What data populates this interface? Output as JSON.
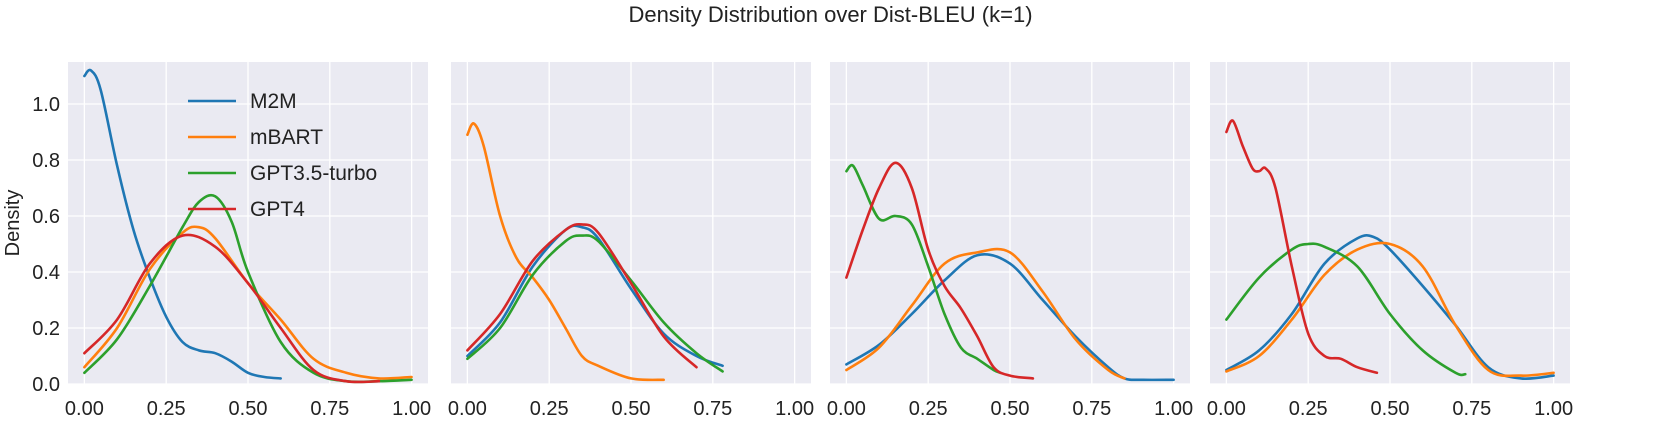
{
  "title": "Density Distribution over Dist-BLEU (k=1)",
  "ylabel": "Density",
  "colors": {
    "background": "#eaeaf2",
    "grid": "#ffffff",
    "M2M": "#1f77b4",
    "mBART": "#ff7f0e",
    "GPT3.5-turbo": "#2ca02c",
    "GPT4": "#d62728"
  },
  "chart_data": {
    "type": "line",
    "xlim": [
      -0.05,
      1.05
    ],
    "ylim": [
      0,
      1.15
    ],
    "xticks": [
      0.0,
      0.25,
      0.5,
      0.75,
      1.0
    ],
    "xtick_labels": [
      "0.00",
      "0.25",
      "0.50",
      "0.75",
      "1.00"
    ],
    "yticks": [
      0.0,
      0.2,
      0.4,
      0.6,
      0.8,
      1.0
    ],
    "ytick_labels": [
      "0.0",
      "0.2",
      "0.4",
      "0.6",
      "0.8",
      "1.0"
    ],
    "legend": [
      "M2M",
      "mBART",
      "GPT3.5-turbo",
      "GPT4"
    ],
    "legend_position": "top-left of first panel",
    "panels": [
      {
        "series": [
          {
            "name": "M2M",
            "x": [
              0.0,
              0.02,
              0.05,
              0.1,
              0.15,
              0.2,
              0.25,
              0.3,
              0.35,
              0.4,
              0.45,
              0.5,
              0.55,
              0.6
            ],
            "y": [
              1.1,
              1.12,
              1.05,
              0.78,
              0.55,
              0.38,
              0.24,
              0.15,
              0.12,
              0.11,
              0.08,
              0.04,
              0.025,
              0.02
            ]
          },
          {
            "name": "mBART",
            "x": [
              0.0,
              0.1,
              0.2,
              0.3,
              0.35,
              0.4,
              0.5,
              0.6,
              0.7,
              0.8,
              0.9,
              1.0
            ],
            "y": [
              0.06,
              0.2,
              0.41,
              0.54,
              0.56,
              0.52,
              0.36,
              0.23,
              0.09,
              0.04,
              0.02,
              0.025
            ]
          },
          {
            "name": "GPT3.5-turbo",
            "x": [
              0.0,
              0.1,
              0.2,
              0.3,
              0.35,
              0.4,
              0.45,
              0.5,
              0.6,
              0.7,
              0.8,
              0.9,
              1.0
            ],
            "y": [
              0.04,
              0.16,
              0.35,
              0.56,
              0.65,
              0.67,
              0.58,
              0.4,
              0.15,
              0.04,
              0.01,
              0.01,
              0.015
            ]
          },
          {
            "name": "GPT4",
            "x": [
              0.0,
              0.1,
              0.2,
              0.3,
              0.4,
              0.5,
              0.6,
              0.7,
              0.8,
              0.9
            ],
            "y": [
              0.11,
              0.23,
              0.43,
              0.53,
              0.49,
              0.36,
              0.2,
              0.05,
              0.01,
              0.01
            ]
          }
        ]
      },
      {
        "series": [
          {
            "name": "M2M",
            "x": [
              0.0,
              0.1,
              0.2,
              0.3,
              0.35,
              0.4,
              0.5,
              0.6,
              0.7,
              0.78
            ],
            "y": [
              0.1,
              0.22,
              0.42,
              0.55,
              0.56,
              0.52,
              0.34,
              0.18,
              0.1,
              0.065
            ]
          },
          {
            "name": "mBART",
            "x": [
              0.0,
              0.02,
              0.05,
              0.1,
              0.15,
              0.2,
              0.25,
              0.3,
              0.35,
              0.4,
              0.5,
              0.6
            ],
            "y": [
              0.89,
              0.93,
              0.85,
              0.6,
              0.45,
              0.38,
              0.3,
              0.2,
              0.1,
              0.065,
              0.02,
              0.015
            ]
          },
          {
            "name": "GPT3.5-turbo",
            "x": [
              0.0,
              0.1,
              0.2,
              0.3,
              0.35,
              0.4,
              0.5,
              0.6,
              0.7,
              0.78
            ],
            "y": [
              0.09,
              0.2,
              0.39,
              0.51,
              0.53,
              0.51,
              0.37,
              0.22,
              0.11,
              0.045
            ]
          },
          {
            "name": "GPT4",
            "x": [
              0.0,
              0.1,
              0.2,
              0.3,
              0.35,
              0.4,
              0.5,
              0.6,
              0.7
            ],
            "y": [
              0.12,
              0.25,
              0.44,
              0.55,
              0.57,
              0.54,
              0.36,
              0.17,
              0.06
            ]
          }
        ]
      },
      {
        "series": [
          {
            "name": "M2M",
            "x": [
              0.0,
              0.1,
              0.2,
              0.3,
              0.4,
              0.5,
              0.6,
              0.7,
              0.8,
              0.85,
              0.9,
              1.0
            ],
            "y": [
              0.07,
              0.14,
              0.25,
              0.37,
              0.46,
              0.43,
              0.3,
              0.17,
              0.06,
              0.02,
              0.015,
              0.015
            ]
          },
          {
            "name": "mBART",
            "x": [
              0.0,
              0.1,
              0.2,
              0.3,
              0.4,
              0.5,
              0.6,
              0.7,
              0.8,
              0.85
            ],
            "y": [
              0.05,
              0.13,
              0.28,
              0.43,
              0.47,
              0.47,
              0.33,
              0.16,
              0.05,
              0.02
            ]
          },
          {
            "name": "GPT3.5-turbo",
            "x": [
              0.0,
              0.02,
              0.05,
              0.1,
              0.15,
              0.2,
              0.25,
              0.3,
              0.35,
              0.4,
              0.45,
              0.47
            ],
            "y": [
              0.76,
              0.78,
              0.71,
              0.59,
              0.6,
              0.57,
              0.42,
              0.25,
              0.13,
              0.09,
              0.05,
              0.04
            ]
          },
          {
            "name": "GPT4",
            "x": [
              0.0,
              0.05,
              0.1,
              0.15,
              0.2,
              0.25,
              0.3,
              0.35,
              0.4,
              0.45,
              0.5,
              0.57
            ],
            "y": [
              0.38,
              0.55,
              0.7,
              0.79,
              0.7,
              0.48,
              0.35,
              0.27,
              0.17,
              0.06,
              0.03,
              0.02
            ]
          }
        ]
      },
      {
        "series": [
          {
            "name": "M2M",
            "x": [
              0.0,
              0.1,
              0.2,
              0.3,
              0.4,
              0.45,
              0.5,
              0.6,
              0.7,
              0.8,
              0.9,
              1.0
            ],
            "y": [
              0.05,
              0.12,
              0.25,
              0.43,
              0.52,
              0.525,
              0.48,
              0.35,
              0.21,
              0.06,
              0.02,
              0.03
            ]
          },
          {
            "name": "mBART",
            "x": [
              0.0,
              0.1,
              0.2,
              0.3,
              0.4,
              0.5,
              0.6,
              0.7,
              0.8,
              0.9,
              1.0
            ],
            "y": [
              0.045,
              0.1,
              0.23,
              0.39,
              0.48,
              0.5,
              0.42,
              0.21,
              0.05,
              0.03,
              0.04
            ]
          },
          {
            "name": "GPT3.5-turbo",
            "x": [
              0.0,
              0.1,
              0.2,
              0.25,
              0.3,
              0.4,
              0.5,
              0.6,
              0.7,
              0.73
            ],
            "y": [
              0.23,
              0.38,
              0.48,
              0.5,
              0.49,
              0.42,
              0.25,
              0.12,
              0.04,
              0.035
            ]
          },
          {
            "name": "GPT4",
            "x": [
              0.0,
              0.02,
              0.05,
              0.08,
              0.1,
              0.12,
              0.15,
              0.2,
              0.25,
              0.3,
              0.35,
              0.4,
              0.46
            ],
            "y": [
              0.9,
              0.94,
              0.85,
              0.77,
              0.76,
              0.77,
              0.7,
              0.42,
              0.18,
              0.1,
              0.09,
              0.06,
              0.04
            ]
          }
        ]
      }
    ]
  }
}
